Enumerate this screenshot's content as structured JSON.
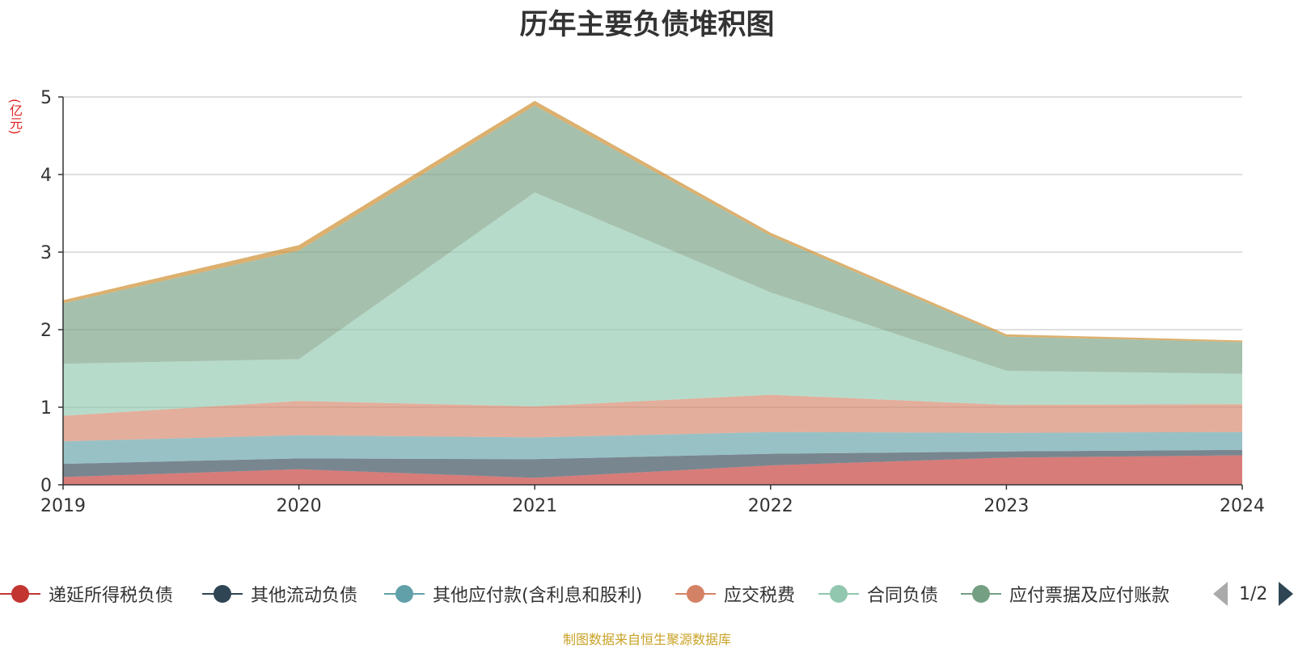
{
  "chart_data": {
    "type": "area",
    "stacked": true,
    "title": "历年主要负债堆积图",
    "unit_label": "(亿元)",
    "x": [
      "2019",
      "2020",
      "2021",
      "2022",
      "2023",
      "2024"
    ],
    "ylim": [
      0,
      5
    ],
    "yticks": [
      "0",
      "1",
      "2",
      "3",
      "4",
      "5"
    ],
    "grid": true,
    "legend_position": "bottom",
    "series": [
      {
        "name": "递延所得税负债",
        "color": "#c23531",
        "values": [
          0.1,
          0.2,
          0.09,
          0.25,
          0.35,
          0.38
        ]
      },
      {
        "name": "其他流动负债",
        "color": "#2f4554",
        "values": [
          0.17,
          0.14,
          0.24,
          0.15,
          0.08,
          0.07
        ]
      },
      {
        "name": "其他应付款(含利息和股利)",
        "color": "#61a0a8",
        "values": [
          0.29,
          0.3,
          0.28,
          0.28,
          0.24,
          0.23
        ]
      },
      {
        "name": "应交税费",
        "color": "#d48265",
        "values": [
          0.33,
          0.44,
          0.4,
          0.48,
          0.36,
          0.36
        ]
      },
      {
        "name": "合同负债",
        "color": "#91c7ae",
        "values": [
          0.67,
          0.54,
          2.76,
          1.32,
          0.44,
          0.39
        ]
      },
      {
        "name": "应付票据及应付账款",
        "color": "#749f83",
        "values": [
          0.78,
          1.4,
          1.12,
          0.73,
          0.44,
          0.41
        ]
      },
      {
        "name": "",
        "color": "#ca8622",
        "values": [
          0.04,
          0.07,
          0.06,
          0.04,
          0.03,
          0.02
        ]
      }
    ]
  },
  "legend": {
    "page_text": "1/2",
    "prev_icon": "triangle-left-icon",
    "next_icon": "triangle-right-icon"
  },
  "footer": "制图数据来自恒生聚源数据库"
}
